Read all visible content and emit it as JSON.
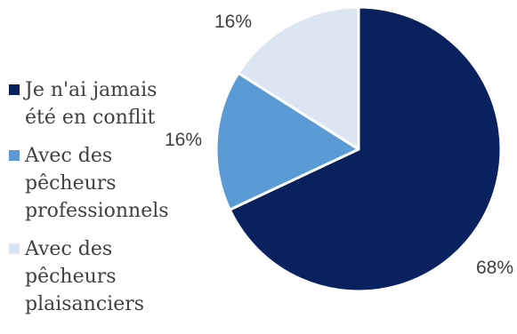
{
  "chart_data": {
    "type": "pie",
    "title": "",
    "slices": [
      {
        "label": "Je n'ai jamais été en conflit",
        "value": 68,
        "display": "68%",
        "color": "#0a2160"
      },
      {
        "label": "Avec des pêcheurs professionnels",
        "value": 16,
        "display": "16%",
        "color": "#5b9bd5"
      },
      {
        "label": "Avec des pêcheurs plaisanciers",
        "value": 16,
        "display": "16%",
        "color": "#dce6f3"
      }
    ],
    "legend_placement": "left",
    "start_angle_deg": 0,
    "direction": "clockwise"
  }
}
